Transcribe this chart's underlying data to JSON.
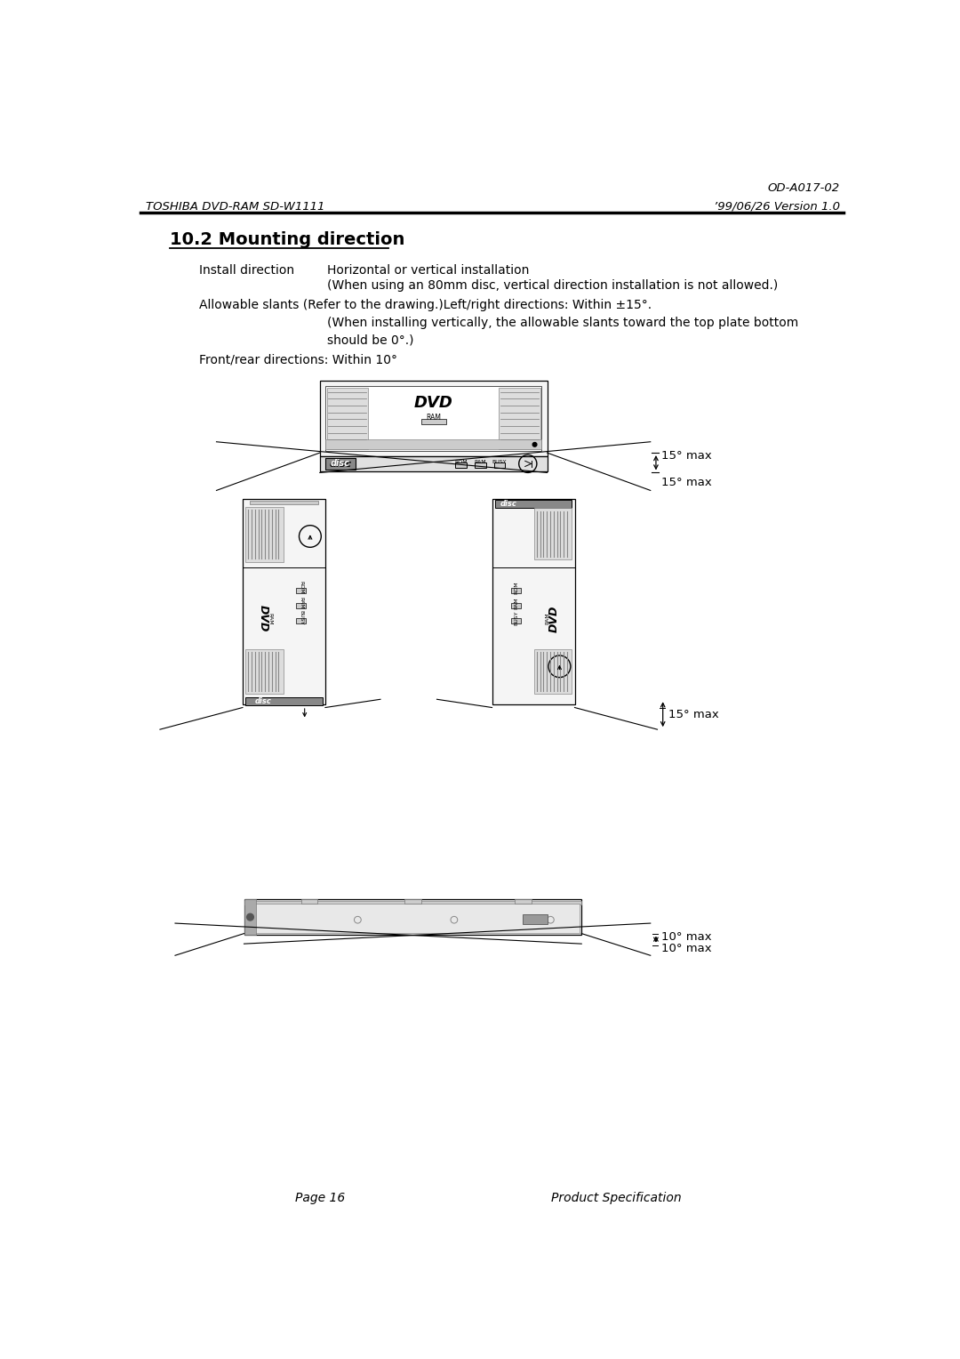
{
  "page_id": "OD-A017-02",
  "left_header": "TOSHIBA DVD-RAM SD-W1111",
  "right_header": "’99/06/26 Version 1.0",
  "section_title": "10.2 Mounting direction",
  "footer_left": "Page 16",
  "footer_right": "Product Specification",
  "bg_color": "#ffffff",
  "text_color": "#000000"
}
